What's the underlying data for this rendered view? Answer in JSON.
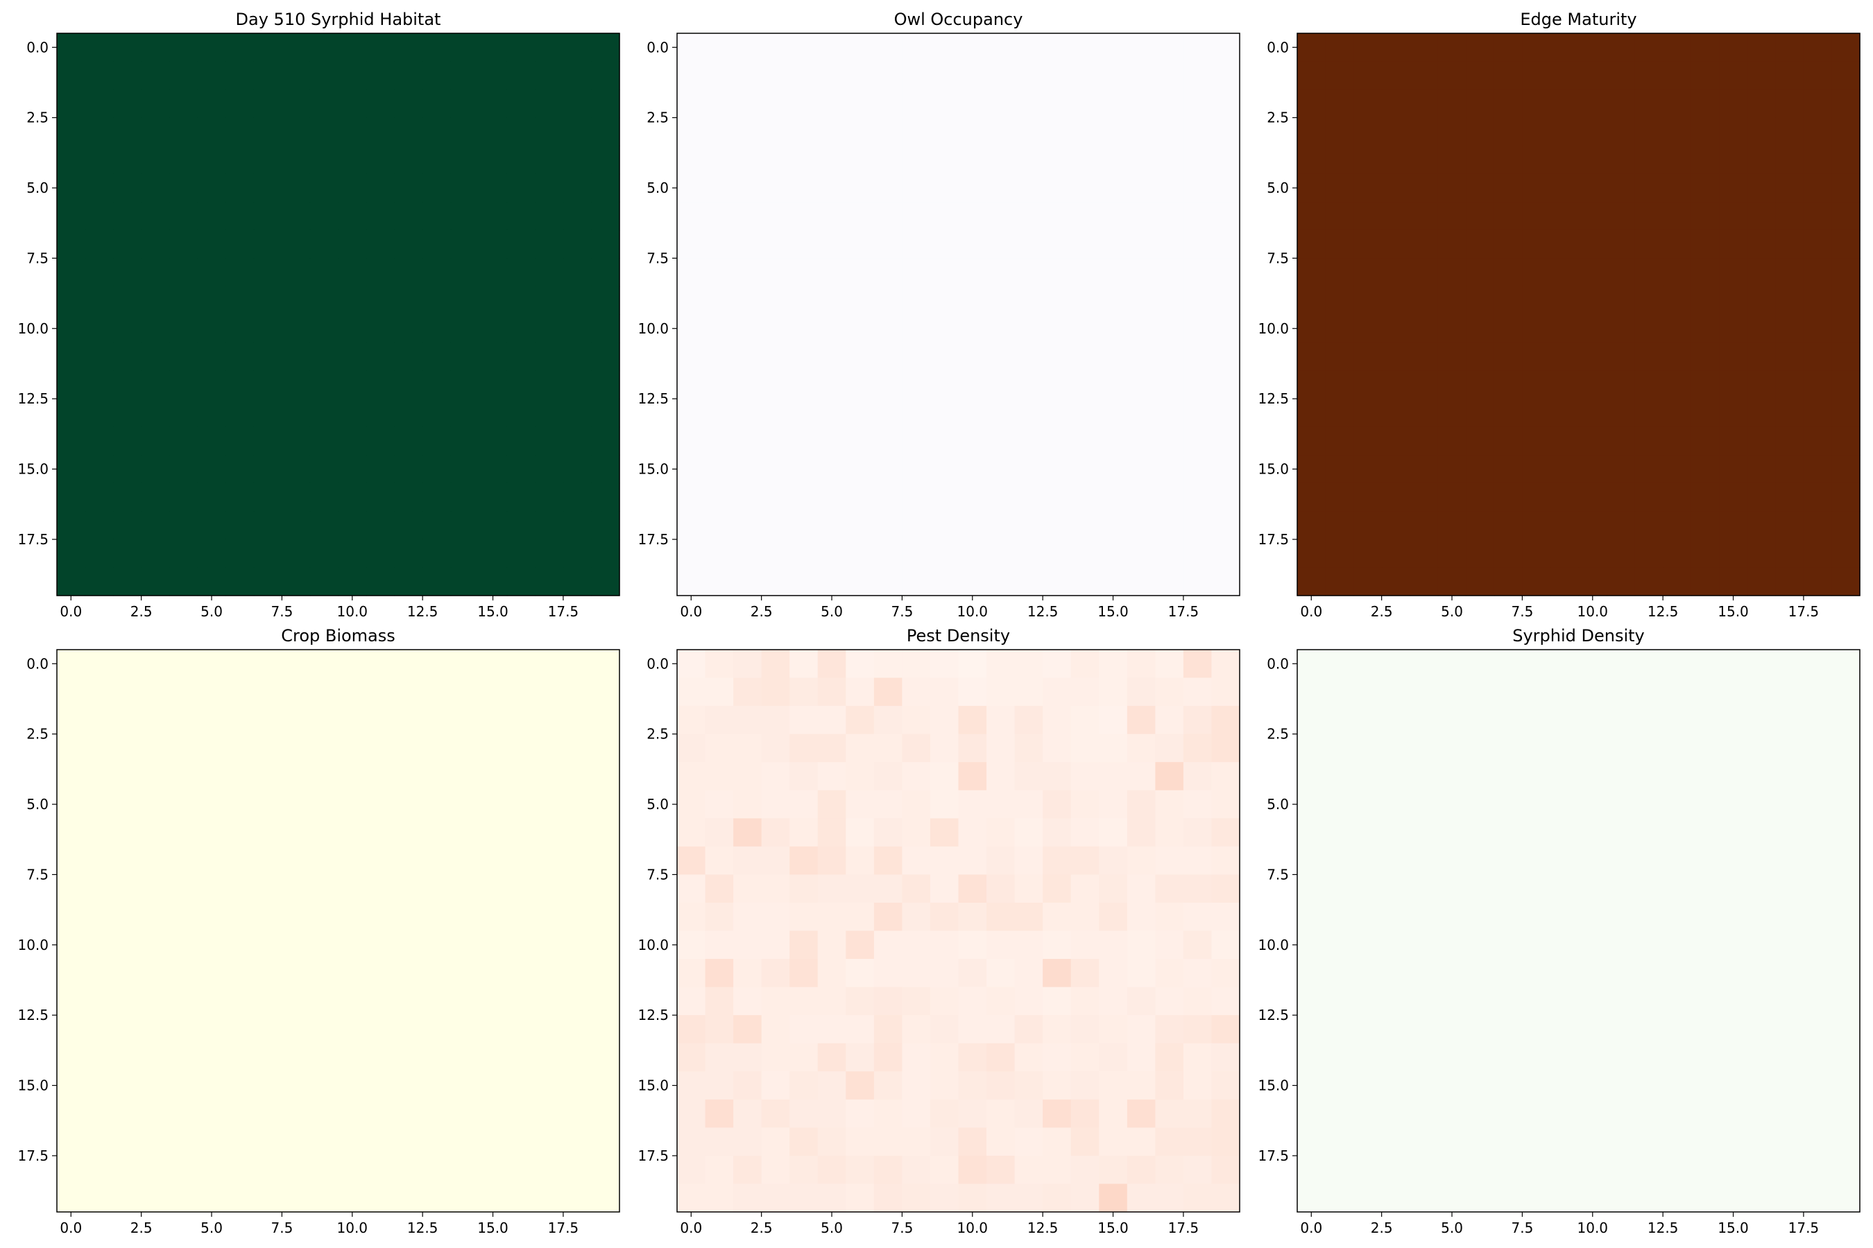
{
  "chart_data": [
    {
      "type": "heatmap",
      "title": "Day 510 Syrphid Habitat",
      "colormap": "Greens",
      "rows": 20,
      "cols": 20,
      "uniform_value": 1.0,
      "cell_color": "#02442A",
      "xlim": [
        -0.5,
        19.5
      ],
      "ylim": [
        19.5,
        -0.5
      ],
      "xticks": [
        "0.0",
        "2.5",
        "5.0",
        "7.5",
        "10.0",
        "12.5",
        "15.0",
        "17.5"
      ],
      "yticks": [
        "0.0",
        "2.5",
        "5.0",
        "7.5",
        "10.0",
        "12.5",
        "15.0",
        "17.5"
      ]
    },
    {
      "type": "heatmap",
      "title": "Owl Occupancy",
      "colormap": "Purples",
      "rows": 20,
      "cols": 20,
      "uniform_value": 0.0,
      "cell_color": "#FBFAFD",
      "xlim": [
        -0.5,
        19.5
      ],
      "ylim": [
        19.5,
        -0.5
      ],
      "xticks": [
        "0.0",
        "2.5",
        "5.0",
        "7.5",
        "10.0",
        "12.5",
        "15.0",
        "17.5"
      ],
      "yticks": [
        "0.0",
        "2.5",
        "5.0",
        "7.5",
        "10.0",
        "12.5",
        "15.0",
        "17.5"
      ]
    },
    {
      "type": "heatmap",
      "title": "Edge Maturity",
      "colormap": "Oranges",
      "rows": 20,
      "cols": 20,
      "uniform_value": 1.0,
      "cell_color": "#642506",
      "xlim": [
        -0.5,
        19.5
      ],
      "ylim": [
        19.5,
        -0.5
      ],
      "xticks": [
        "0.0",
        "2.5",
        "5.0",
        "7.5",
        "10.0",
        "12.5",
        "15.0",
        "17.5"
      ],
      "yticks": [
        "0.0",
        "2.5",
        "5.0",
        "7.5",
        "10.0",
        "12.5",
        "15.0",
        "17.5"
      ]
    },
    {
      "type": "heatmap",
      "title": "Crop Biomass",
      "colormap": "YlGn",
      "rows": 20,
      "cols": 20,
      "uniform_value": 0.0,
      "cell_color": "#FFFFE6",
      "xlim": [
        -0.5,
        19.5
      ],
      "ylim": [
        19.5,
        -0.5
      ],
      "xticks": [
        "0.0",
        "2.5",
        "5.0",
        "7.5",
        "10.0",
        "12.5",
        "15.0",
        "17.5"
      ],
      "yticks": [
        "0.0",
        "2.5",
        "5.0",
        "7.5",
        "10.0",
        "12.5",
        "15.0",
        "17.5"
      ]
    },
    {
      "type": "heatmap",
      "title": "Pest Density",
      "colormap": "Reds",
      "rows": 20,
      "cols": 20,
      "color_low": "#FFF5F0",
      "color_high": "#FDD8C8",
      "values": [
        [
          0.04,
          0.1,
          0.12,
          0.2,
          0.06,
          0.22,
          0.04,
          0.06,
          0.06,
          0.04,
          0.02,
          0.06,
          0.06,
          0.04,
          0.1,
          0.06,
          0.1,
          0.06,
          0.26,
          0.1
        ],
        [
          0.06,
          0.06,
          0.18,
          0.2,
          0.14,
          0.18,
          0.08,
          0.28,
          0.08,
          0.08,
          0.04,
          0.06,
          0.06,
          0.08,
          0.08,
          0.06,
          0.12,
          0.1,
          0.08,
          0.1
        ],
        [
          0.1,
          0.12,
          0.12,
          0.12,
          0.08,
          0.08,
          0.2,
          0.12,
          0.1,
          0.08,
          0.24,
          0.08,
          0.16,
          0.08,
          0.06,
          0.04,
          0.26,
          0.08,
          0.16,
          0.24
        ],
        [
          0.12,
          0.1,
          0.1,
          0.12,
          0.18,
          0.18,
          0.1,
          0.1,
          0.16,
          0.08,
          0.16,
          0.08,
          0.14,
          0.08,
          0.06,
          0.06,
          0.1,
          0.12,
          0.2,
          0.24
        ],
        [
          0.1,
          0.1,
          0.1,
          0.08,
          0.12,
          0.08,
          0.1,
          0.12,
          0.08,
          0.06,
          0.3,
          0.08,
          0.12,
          0.12,
          0.08,
          0.08,
          0.08,
          0.36,
          0.12,
          0.1
        ],
        [
          0.1,
          0.08,
          0.1,
          0.08,
          0.08,
          0.2,
          0.08,
          0.08,
          0.1,
          0.06,
          0.08,
          0.08,
          0.08,
          0.16,
          0.1,
          0.08,
          0.16,
          0.1,
          0.08,
          0.1
        ],
        [
          0.1,
          0.12,
          0.34,
          0.16,
          0.1,
          0.2,
          0.06,
          0.12,
          0.1,
          0.24,
          0.08,
          0.1,
          0.06,
          0.12,
          0.08,
          0.06,
          0.16,
          0.1,
          0.12,
          0.18
        ],
        [
          0.26,
          0.1,
          0.12,
          0.12,
          0.28,
          0.22,
          0.1,
          0.24,
          0.08,
          0.08,
          0.08,
          0.12,
          0.08,
          0.18,
          0.18,
          0.12,
          0.1,
          0.08,
          0.08,
          0.1
        ],
        [
          0.08,
          0.22,
          0.1,
          0.1,
          0.14,
          0.12,
          0.12,
          0.12,
          0.18,
          0.08,
          0.26,
          0.16,
          0.1,
          0.2,
          0.1,
          0.14,
          0.08,
          0.16,
          0.16,
          0.18
        ],
        [
          0.1,
          0.14,
          0.08,
          0.08,
          0.1,
          0.1,
          0.1,
          0.26,
          0.12,
          0.18,
          0.14,
          0.2,
          0.2,
          0.1,
          0.1,
          0.18,
          0.08,
          0.1,
          0.08,
          0.08
        ],
        [
          0.06,
          0.08,
          0.08,
          0.08,
          0.24,
          0.1,
          0.26,
          0.08,
          0.08,
          0.08,
          0.06,
          0.08,
          0.08,
          0.06,
          0.08,
          0.08,
          0.06,
          0.08,
          0.14,
          0.06
        ],
        [
          0.1,
          0.3,
          0.1,
          0.16,
          0.26,
          0.1,
          0.06,
          0.08,
          0.08,
          0.08,
          0.12,
          0.06,
          0.08,
          0.34,
          0.18,
          0.08,
          0.06,
          0.1,
          0.08,
          0.1
        ],
        [
          0.08,
          0.18,
          0.08,
          0.1,
          0.1,
          0.1,
          0.14,
          0.16,
          0.14,
          0.1,
          0.08,
          0.1,
          0.08,
          0.06,
          0.1,
          0.08,
          0.12,
          0.08,
          0.1,
          0.08
        ],
        [
          0.22,
          0.18,
          0.28,
          0.1,
          0.08,
          0.08,
          0.08,
          0.2,
          0.1,
          0.12,
          0.08,
          0.08,
          0.16,
          0.1,
          0.12,
          0.1,
          0.08,
          0.16,
          0.18,
          0.24
        ],
        [
          0.18,
          0.12,
          0.12,
          0.1,
          0.1,
          0.22,
          0.12,
          0.22,
          0.08,
          0.1,
          0.18,
          0.22,
          0.1,
          0.08,
          0.1,
          0.12,
          0.08,
          0.2,
          0.1,
          0.12
        ],
        [
          0.12,
          0.12,
          0.16,
          0.08,
          0.14,
          0.12,
          0.28,
          0.14,
          0.08,
          0.1,
          0.14,
          0.16,
          0.14,
          0.1,
          0.12,
          0.1,
          0.1,
          0.18,
          0.1,
          0.14
        ],
        [
          0.12,
          0.3,
          0.12,
          0.18,
          0.12,
          0.12,
          0.08,
          0.1,
          0.08,
          0.14,
          0.12,
          0.1,
          0.12,
          0.3,
          0.22,
          0.1,
          0.3,
          0.14,
          0.14,
          0.2
        ],
        [
          0.12,
          0.12,
          0.12,
          0.1,
          0.2,
          0.14,
          0.1,
          0.1,
          0.1,
          0.12,
          0.22,
          0.1,
          0.08,
          0.1,
          0.2,
          0.1,
          0.1,
          0.18,
          0.18,
          0.2
        ],
        [
          0.12,
          0.1,
          0.18,
          0.1,
          0.14,
          0.18,
          0.14,
          0.18,
          0.12,
          0.1,
          0.26,
          0.22,
          0.1,
          0.1,
          0.12,
          0.14,
          0.18,
          0.14,
          0.12,
          0.18
        ],
        [
          0.1,
          0.1,
          0.12,
          0.12,
          0.12,
          0.12,
          0.1,
          0.16,
          0.14,
          0.12,
          0.14,
          0.12,
          0.12,
          0.14,
          0.12,
          0.4,
          0.12,
          0.12,
          0.14,
          0.14
        ]
      ],
      "xlim": [
        -0.5,
        19.5
      ],
      "ylim": [
        19.5,
        -0.5
      ],
      "xticks": [
        "0.0",
        "2.5",
        "5.0",
        "7.5",
        "10.0",
        "12.5",
        "15.0",
        "17.5"
      ],
      "yticks": [
        "0.0",
        "2.5",
        "5.0",
        "7.5",
        "10.0",
        "12.5",
        "15.0",
        "17.5"
      ]
    },
    {
      "type": "heatmap",
      "title": "Syrphid Density",
      "colormap": "Greens",
      "rows": 20,
      "cols": 20,
      "uniform_value": 0.0,
      "cell_color": "#F7FCF5",
      "xlim": [
        -0.5,
        19.5
      ],
      "ylim": [
        19.5,
        -0.5
      ],
      "xticks": [
        "0.0",
        "2.5",
        "5.0",
        "7.5",
        "10.0",
        "12.5",
        "15.0",
        "17.5"
      ],
      "yticks": [
        "0.0",
        "2.5",
        "5.0",
        "7.5",
        "10.0",
        "12.5",
        "15.0",
        "17.5"
      ]
    }
  ]
}
